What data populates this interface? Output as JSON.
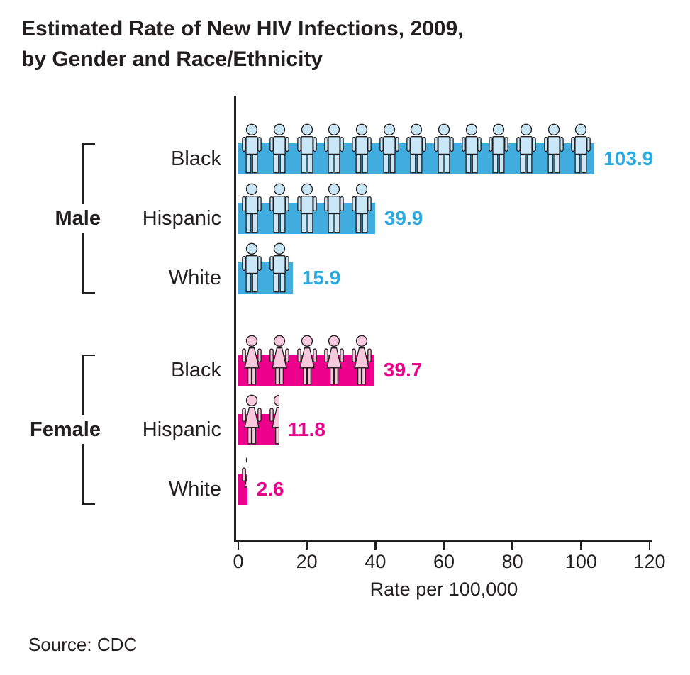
{
  "title": {
    "line1": "Estimated Rate of New HIV Infections, 2009,",
    "line2": "by Gender and Race/Ethnicity"
  },
  "x_axis": {
    "label": "Rate per 100,000",
    "ticks": [
      0,
      20,
      40,
      60,
      80,
      100,
      120
    ],
    "min": 0,
    "max": 120
  },
  "source": "Source: CDC",
  "colors": {
    "male_bar": "#41ACDE",
    "male_icon_fill": "#C9E7F7",
    "male_value_text": "#29ABE2",
    "female_bar": "#EC008C",
    "female_icon_fill": "#F8C9DD",
    "female_value_text": "#EC008C",
    "text_dark": "#231F20",
    "axis": "#231F20"
  },
  "chart_data": {
    "type": "bar",
    "orientation": "horizontal",
    "title": "Estimated Rate of New HIV Infections, 2009, by Gender and Race/Ethnicity",
    "xlabel": "Rate per 100,000",
    "xlim": [
      0,
      120
    ],
    "xticks": [
      0,
      20,
      40,
      60,
      80,
      100,
      120
    ],
    "grid": false,
    "units_per_icon": 8,
    "groups": [
      {
        "label": "Male",
        "icon": "male",
        "bars": [
          {
            "category": "Black",
            "value": 103.9,
            "value_label": "103.9"
          },
          {
            "category": "Hispanic",
            "value": 39.9,
            "value_label": "39.9"
          },
          {
            "category": "White",
            "value": 15.9,
            "value_label": "15.9"
          }
        ]
      },
      {
        "label": "Female",
        "icon": "female",
        "bars": [
          {
            "category": "Black",
            "value": 39.7,
            "value_label": "39.7"
          },
          {
            "category": "Hispanic",
            "value": 11.8,
            "value_label": "11.8"
          },
          {
            "category": "White",
            "value": 2.6,
            "value_label": "2.6"
          }
        ]
      }
    ],
    "source": "CDC"
  }
}
